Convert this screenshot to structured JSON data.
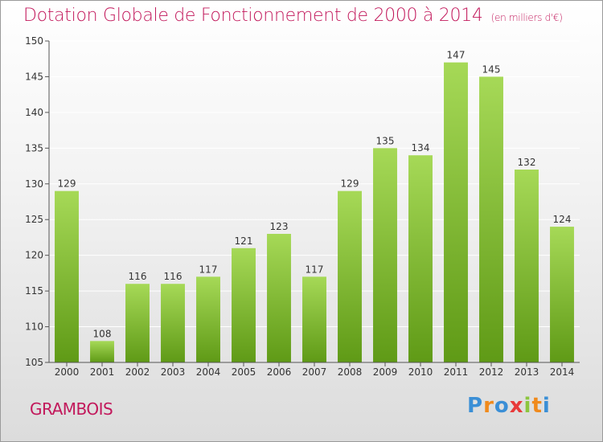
{
  "title": "Dotation Globale de Fonctionnement de 2000 à 2014",
  "unit_note": "(en milliers d'€)",
  "commune": "GRAMBOIS",
  "logo": {
    "letters": [
      "P",
      "r",
      "o",
      "x",
      "i",
      "t",
      "i"
    ],
    "colors": [
      "#3b8fd6",
      "#f08a1c",
      "#3b8fd6",
      "#e83a3a",
      "#8cc63f",
      "#f08a1c",
      "#3b8fd6"
    ]
  },
  "colors": {
    "bar_top": "#a6d957",
    "bar_bottom": "#5f9a16",
    "title": "#c2185b",
    "grid": "#ffffff"
  },
  "chart_data": {
    "type": "bar",
    "title": "Dotation Globale de Fonctionnement de 2000 à 2014",
    "xlabel": "",
    "ylabel": "",
    "ylim": [
      105,
      150
    ],
    "yticks": [
      105,
      110,
      115,
      120,
      125,
      130,
      135,
      140,
      145,
      150
    ],
    "categories": [
      "2000",
      "2001",
      "2002",
      "2003",
      "2004",
      "2005",
      "2006",
      "2007",
      "2008",
      "2009",
      "2010",
      "2011",
      "2012",
      "2013",
      "2014"
    ],
    "values": [
      129,
      108,
      116,
      116,
      117,
      121,
      123,
      117,
      129,
      135,
      134,
      147,
      145,
      132,
      124
    ],
    "grid": true,
    "legend": "none"
  }
}
